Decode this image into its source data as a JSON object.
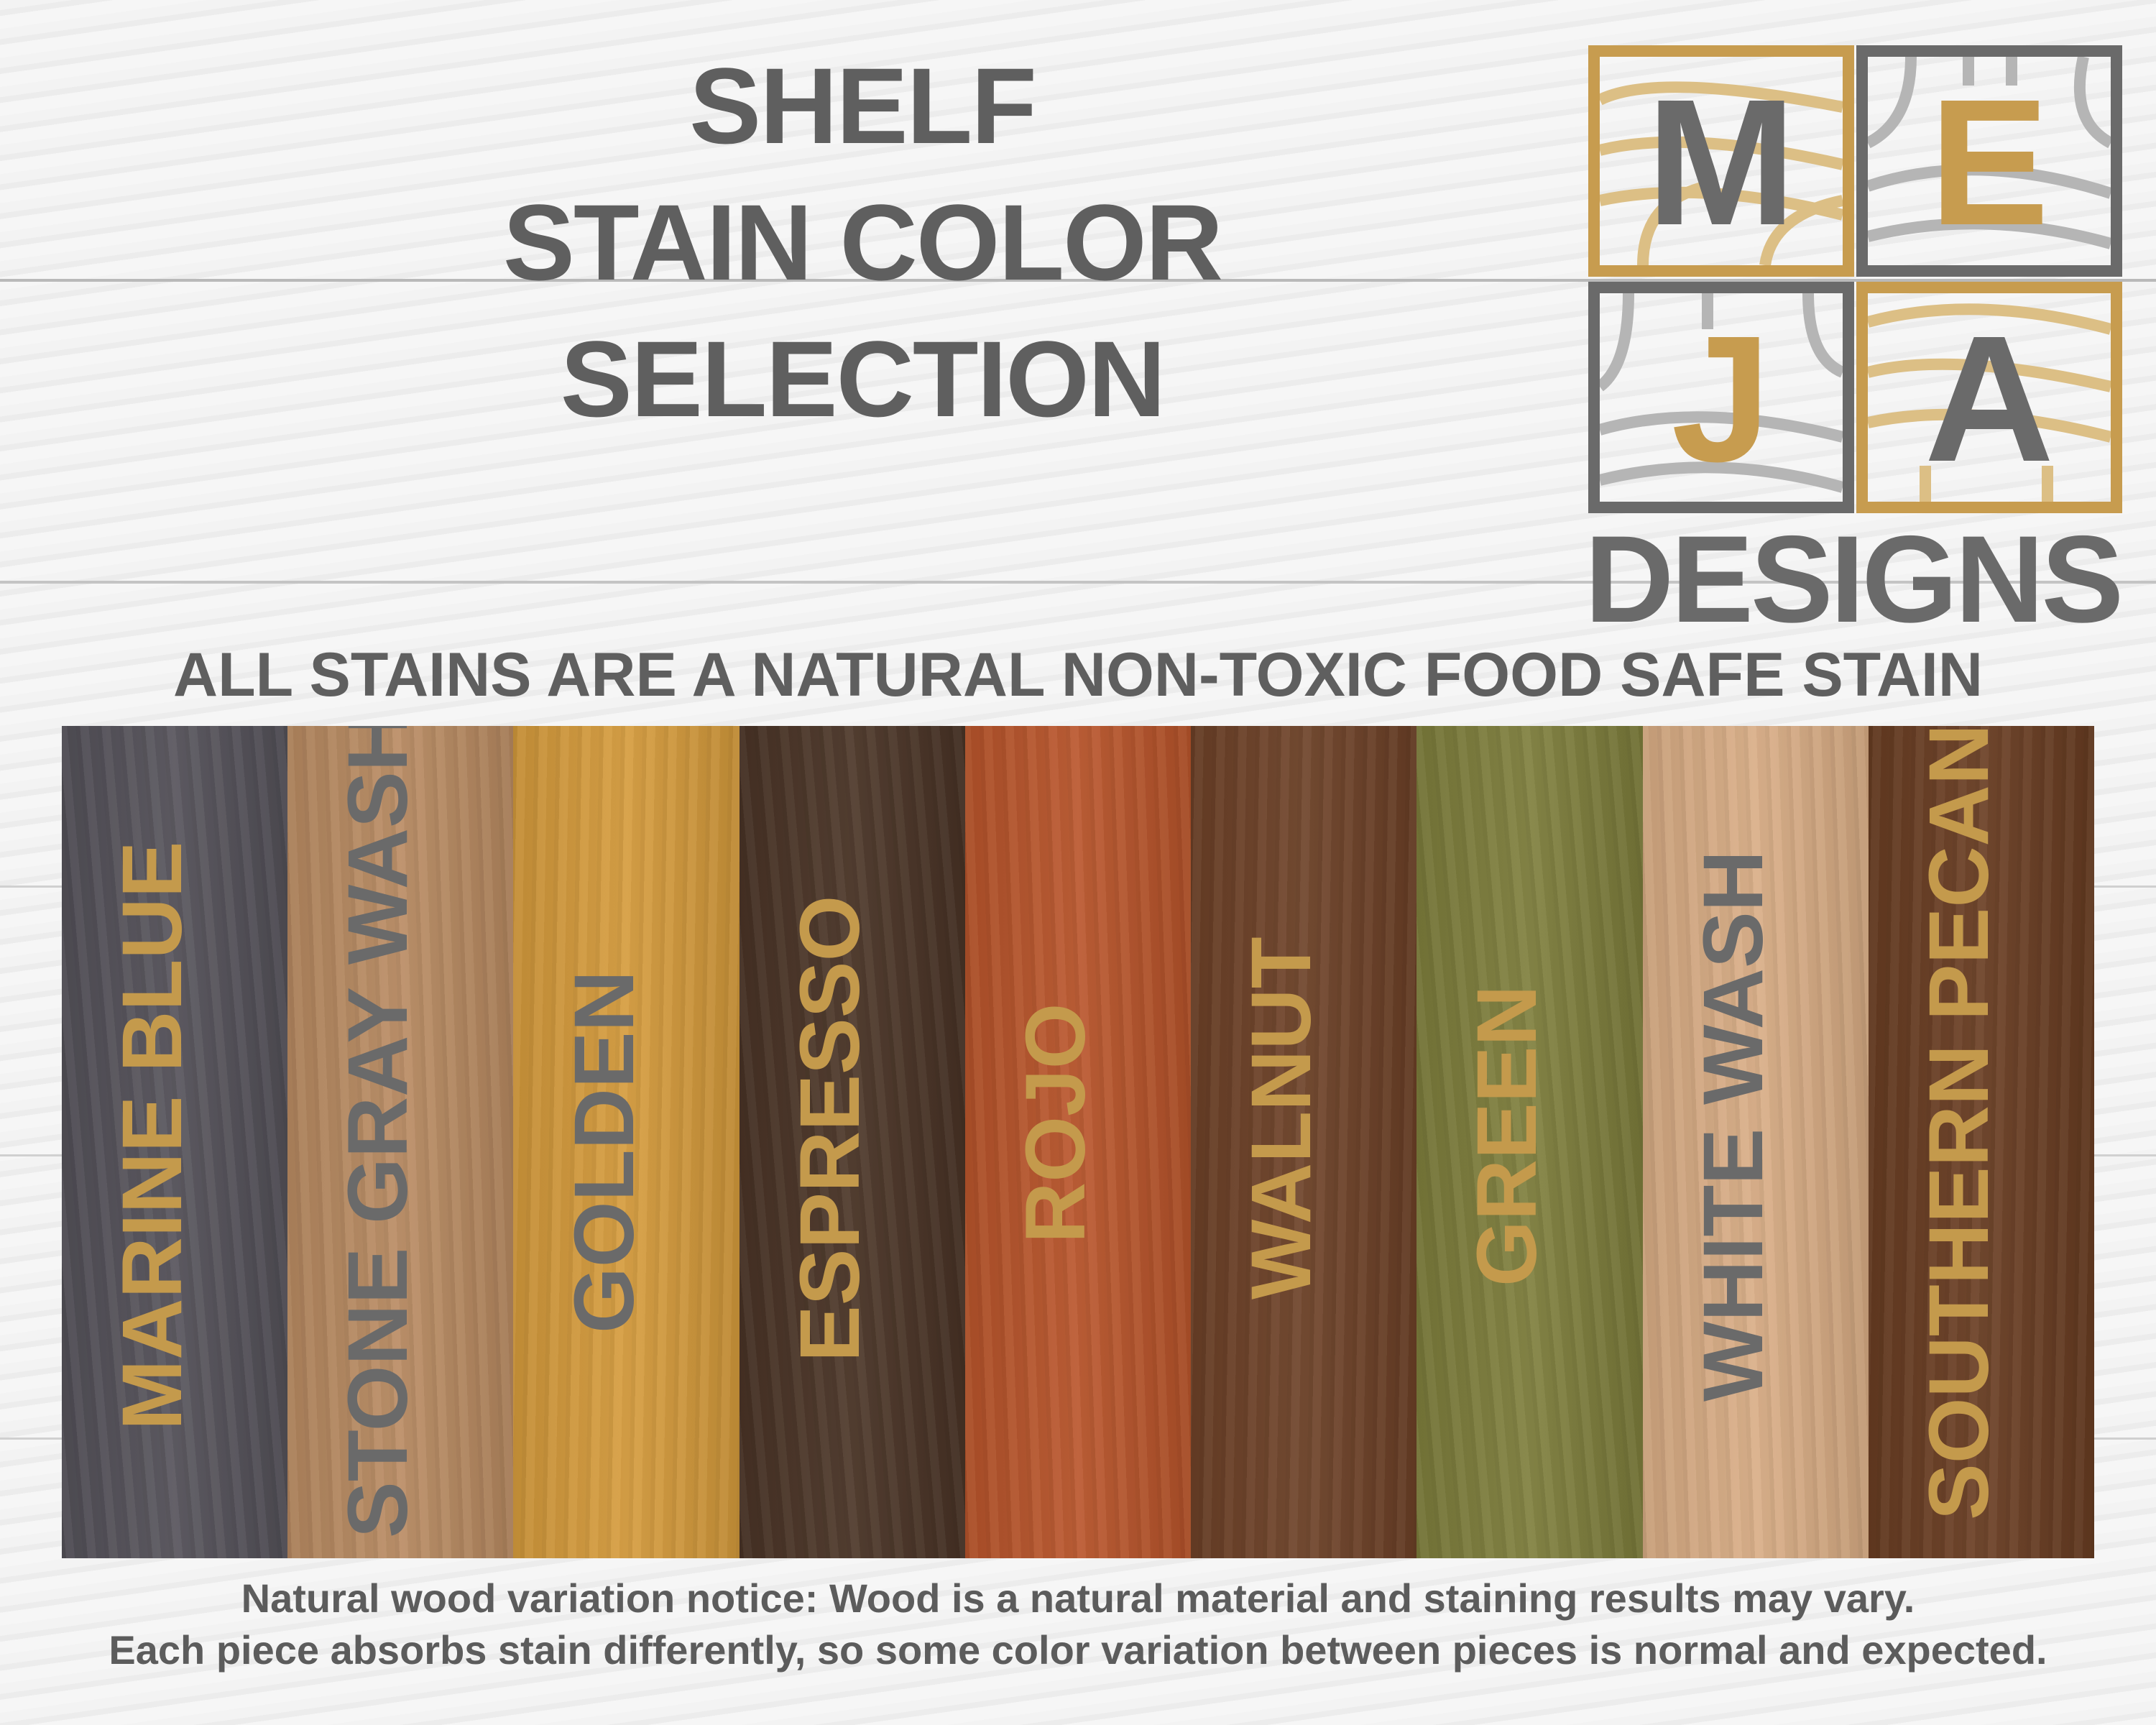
{
  "title": {
    "line1": "SHELF",
    "line2": "STAIN COLOR",
    "line3": "SELECTION"
  },
  "logo": {
    "letters": [
      "M",
      "E",
      "J",
      "A"
    ],
    "wordmark": "DESIGNS",
    "colors": {
      "gold": "#c79c4f",
      "gray": "#6a6a6a"
    }
  },
  "subtitle": "ALL STAINS ARE A NATURAL NON-TOXIC FOOD SAFE STAIN",
  "stains": [
    {
      "name": "MARINE BLUE",
      "wood_color": "#55525a",
      "label_color": "#c49a4c"
    },
    {
      "name": "STONE GRAY WASH",
      "wood_color": "#b98b62",
      "label_color": "#6a6a6a"
    },
    {
      "name": "GOLDEN",
      "wood_color": "#d59b3c",
      "label_color": "#6a6a6a"
    },
    {
      "name": "ESPRESSO",
      "wood_color": "#4a3426",
      "label_color": "#c49a4c"
    },
    {
      "name": "ROJO",
      "wood_color": "#b9552b",
      "label_color": "#c49a4c"
    },
    {
      "name": "WALNUT",
      "wood_color": "#6d4127",
      "label_color": "#c49a4c"
    },
    {
      "name": "GREEN",
      "wood_color": "#7e7e3c",
      "label_color": "#c49a4c"
    },
    {
      "name": "WHITE WASH",
      "wood_color": "#d9ad85",
      "label_color": "#6a6a6a"
    },
    {
      "name": "SOUTHERN PECAN",
      "wood_color": "#693d22",
      "label_color": "#c49a4c"
    }
  ],
  "footer": {
    "line1": "Natural wood variation notice: Wood is a natural material and staining results may vary.",
    "line2": "Each piece absorbs stain differently, so some color variation between pieces is normal and expected."
  }
}
